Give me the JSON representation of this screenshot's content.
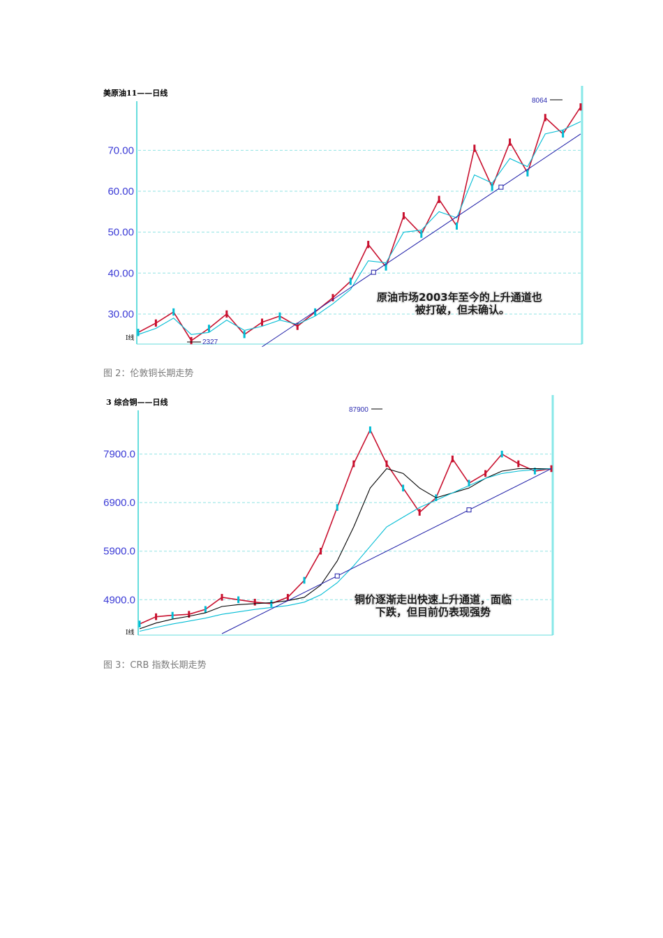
{
  "captions": {
    "fig2": "图 2：伦敦铜长期走势",
    "fig3": "图 3：CRB 指数长期走势"
  },
  "chart_data": [
    {
      "type": "line",
      "title": "美原油11——日线",
      "bottom_label": "I线",
      "ylim": [
        23,
        82
      ],
      "yticks": [
        30,
        40,
        50,
        60,
        70
      ],
      "ytick_labels": [
        "30.00",
        "40.00",
        "50.00",
        "60.00",
        "70.00"
      ],
      "peak_label": "8064",
      "low_label": "2327",
      "annotation_lines": [
        "原油市场2003年至今的上升通道也",
        "被打破，但未确认。"
      ],
      "x": [
        0,
        4,
        8,
        12,
        16,
        20,
        24,
        28,
        32,
        36,
        40,
        44,
        48,
        52,
        56,
        60,
        64,
        68,
        72,
        76,
        80,
        84,
        88,
        92,
        96,
        100
      ],
      "series": [
        {
          "name": "price",
          "color": "#c8102e",
          "values": [
            25.5,
            27.8,
            30.5,
            23.5,
            26.5,
            30.0,
            25.0,
            28.0,
            29.5,
            27.0,
            30.5,
            34.0,
            38.0,
            47.0,
            41.5,
            54.0,
            49.5,
            58.0,
            51.5,
            70.5,
            61.0,
            72.0,
            64.5,
            78.0,
            74.0,
            80.6
          ]
        },
        {
          "name": "MA-fast",
          "color": "#00bcd4",
          "values": [
            25.0,
            26.5,
            29.0,
            25.0,
            25.5,
            28.5,
            26.0,
            27.0,
            28.5,
            27.5,
            29.5,
            32.5,
            36.0,
            43.0,
            42.5,
            50.0,
            50.5,
            55.0,
            53.5,
            64.0,
            62.0,
            68.0,
            66.0,
            74.0,
            75.0,
            77.0
          ]
        }
      ],
      "trend_line": {
        "from": [
          28,
          22
        ],
        "to": [
          100,
          74
        ]
      }
    },
    {
      "type": "line",
      "title": "3 综合铜——日线",
      "bottom_label": "I线",
      "ylim": [
        4200,
        8800
      ],
      "yticks": [
        4900,
        5900,
        6900,
        7900
      ],
      "ytick_labels": [
        "4900.0",
        "5900.0",
        "6900.0",
        "7900.0"
      ],
      "peak_label": "87900",
      "annotation_lines": [
        "铜价逐渐走出快速上升通道，面临",
        "下跌，但目前仍表现强势"
      ],
      "x": [
        0,
        4,
        8,
        12,
        16,
        20,
        24,
        28,
        32,
        36,
        40,
        44,
        48,
        52,
        56,
        60,
        64,
        68,
        72,
        76,
        80,
        84,
        88,
        92,
        96,
        100
      ],
      "series": [
        {
          "name": "price",
          "color": "#c8102e",
          "values": [
            4400,
            4550,
            4580,
            4600,
            4700,
            4950,
            4900,
            4850,
            4820,
            4950,
            5300,
            5900,
            6800,
            7700,
            8400,
            7700,
            7200,
            6700,
            7000,
            7800,
            7300,
            7500,
            7900,
            7700,
            7550,
            7600
          ]
        },
        {
          "name": "MA-long",
          "color": "#000000",
          "values": [
            4300,
            4420,
            4500,
            4560,
            4630,
            4760,
            4800,
            4820,
            4840,
            4880,
            4950,
            5200,
            5700,
            6400,
            7200,
            7600,
            7500,
            7200,
            7000,
            7100,
            7200,
            7400,
            7550,
            7600,
            7600,
            7600
          ]
        },
        {
          "name": "MA-base",
          "color": "#00bcd4",
          "values": [
            4250,
            4330,
            4400,
            4460,
            4520,
            4600,
            4650,
            4700,
            4740,
            4780,
            4850,
            5000,
            5250,
            5600,
            6000,
            6400,
            6600,
            6800,
            6950,
            7100,
            7250,
            7400,
            7500,
            7550,
            7580,
            7600
          ]
        }
      ],
      "trend_line": {
        "from": [
          20,
          4200
        ],
        "to": [
          100,
          7600
        ]
      }
    }
  ]
}
